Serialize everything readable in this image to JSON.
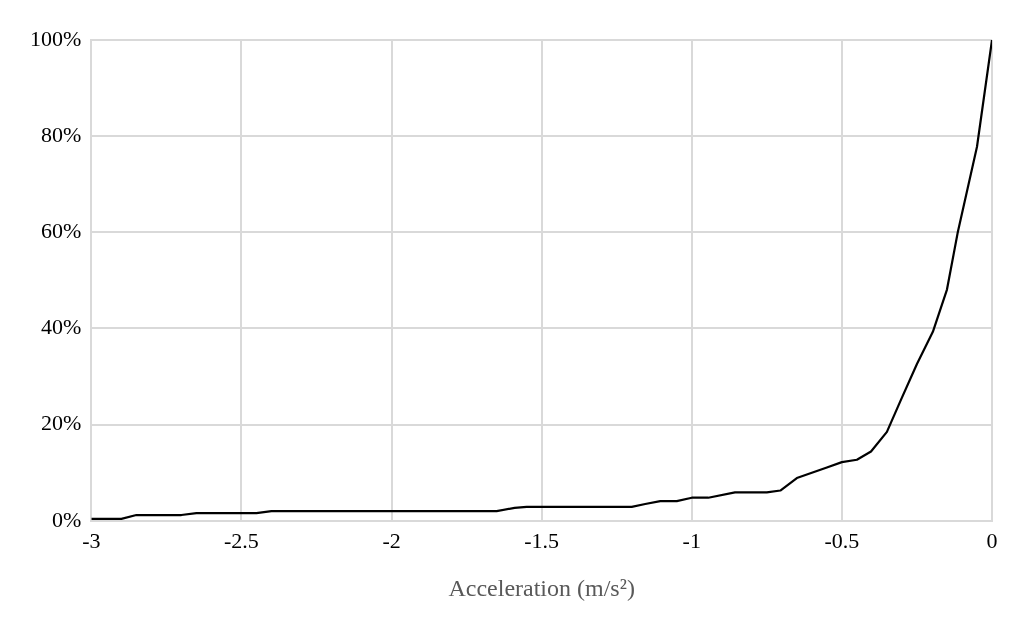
{
  "chart_data": {
    "type": "line",
    "xlabel": "Acceleration (m/s²)",
    "series": [
      {
        "color": "#000000",
        "x": [
          -3,
          -2.9,
          -2.85,
          -2.7,
          -2.65,
          -2.45,
          -2.4,
          -1.65,
          -1.59,
          -1.55,
          -1.2,
          -1.155,
          -1.105,
          -1.05,
          -1.0,
          -0.945,
          -0.856,
          -0.75,
          -0.705,
          -0.65,
          -0.55,
          -0.5,
          -0.45,
          -0.403,
          -0.35,
          -0.303,
          -0.25,
          -0.197,
          -0.15,
          -0.114,
          -0.05,
          0
        ],
        "values": [
          0.4,
          0.4,
          1.2,
          1.2,
          1.6,
          1.6,
          2.0,
          2.0,
          2.7,
          2.9,
          2.9,
          3.5,
          4.1,
          4.1,
          4.8,
          4.8,
          5.9,
          5.9,
          6.3,
          8.9,
          11.1,
          12.2,
          12.7,
          14.4,
          18.5,
          25.2,
          32.6,
          39.3,
          48.1,
          60,
          77.8,
          100
        ]
      }
    ],
    "xlim": [
      -3,
      0
    ],
    "xticks": [
      -3,
      -2.5,
      -2,
      -1.5,
      -1,
      -0.5,
      0
    ],
    "ylim": [
      0,
      100
    ],
    "yticks": [
      {
        "value": 0,
        "label": "0%"
      },
      {
        "value": 20,
        "label": "20%"
      },
      {
        "value": 40,
        "label": "40%"
      },
      {
        "value": 60,
        "label": "60%"
      },
      {
        "value": 80,
        "label": "80%"
      },
      {
        "value": 100,
        "label": "100%"
      }
    ],
    "grid": true,
    "legend": false,
    "marker": "none",
    "line_style": "solid"
  }
}
